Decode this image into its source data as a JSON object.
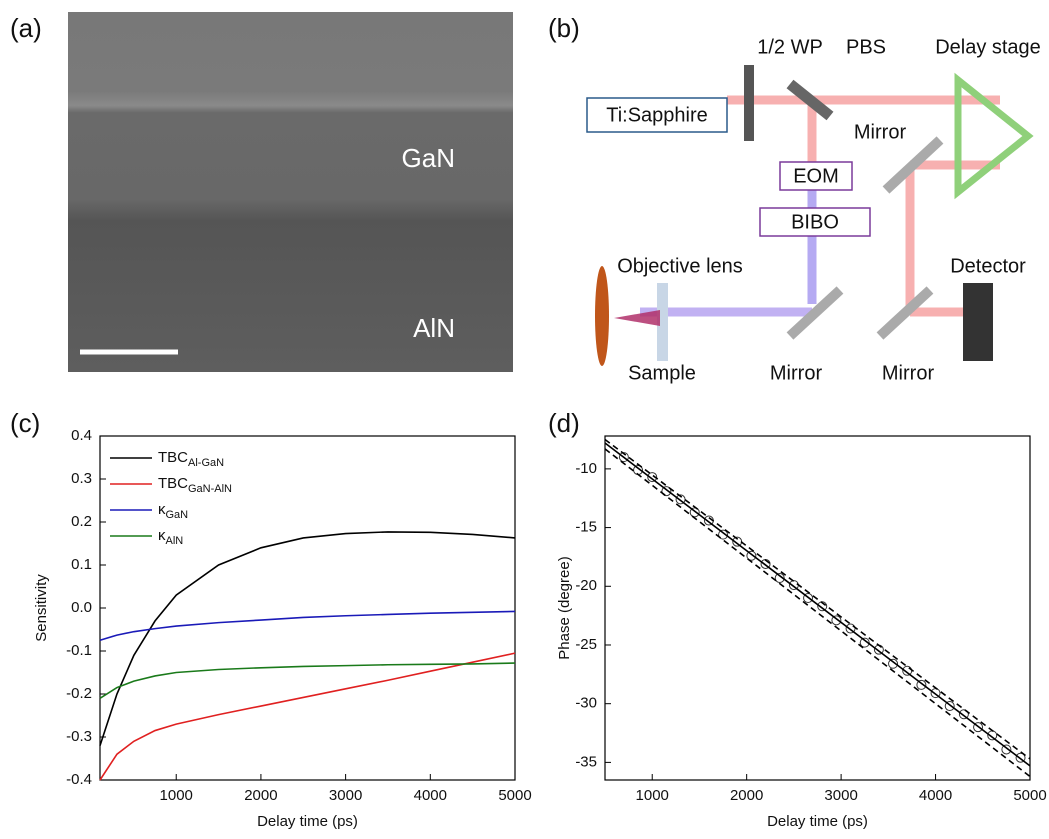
{
  "panels": {
    "a": "(a)",
    "b": "(b)",
    "c": "(c)",
    "d": "(d)"
  },
  "image": {
    "layer_top": "GaN",
    "layer_bottom": "AlN"
  },
  "diagram": {
    "laser": "Ti:Sapphire",
    "waveplate": "1/2 WP",
    "pbs": "PBS",
    "delay_stage": "Delay stage",
    "mirror_top": "Mirror",
    "eom": "EOM",
    "bibo": "BIBO",
    "objective": "Objective lens",
    "detector": "Detector",
    "sample": "Sample",
    "mirror_mid": "Mirror",
    "mirror_right": "Mirror"
  },
  "chart_data": [
    {
      "type": "line",
      "xlabel": "Delay time (ps)",
      "ylabel": "Sensitivity",
      "xlim": [
        100,
        5000
      ],
      "ylim": [
        -0.4,
        0.4
      ],
      "xticks": [
        1000,
        2000,
        3000,
        4000,
        5000
      ],
      "yticks": [
        -0.4,
        -0.3,
        -0.2,
        -0.1,
        {
          "value": 0,
          "label": "0.0"
        },
        0.1,
        0.2,
        0.3,
        0.4
      ],
      "legend": "top-left",
      "x": [
        100,
        300,
        500,
        750,
        1000,
        1500,
        2000,
        2500,
        3000,
        3500,
        4000,
        4500,
        5000
      ],
      "series": [
        {
          "name": "TBC",
          "name_sub": "Al-GaN",
          "color": "#000000",
          "values": [
            -0.32,
            -0.2,
            -0.11,
            -0.03,
            0.03,
            0.1,
            0.14,
            0.163,
            0.173,
            0.177,
            0.176,
            0.171,
            0.163
          ]
        },
        {
          "name": "TBC",
          "name_sub": "GaN-AlN",
          "color": "#e02020",
          "values": [
            -0.4,
            -0.34,
            -0.31,
            -0.285,
            -0.27,
            -0.248,
            -0.228,
            -0.208,
            -0.188,
            -0.168,
            -0.147,
            -0.126,
            -0.105
          ]
        },
        {
          "name": "κ",
          "name_sub": "GaN",
          "color": "#1a1ab8",
          "values": [
            -0.075,
            -0.063,
            -0.055,
            -0.048,
            -0.042,
            -0.034,
            -0.028,
            -0.022,
            -0.018,
            -0.015,
            -0.012,
            -0.01,
            -0.008
          ]
        },
        {
          "name": "κ",
          "name_sub": "AlN",
          "color": "#1a7a1a",
          "values": [
            -0.21,
            -0.185,
            -0.17,
            -0.158,
            -0.15,
            -0.143,
            -0.139,
            -0.136,
            -0.134,
            -0.132,
            -0.131,
            -0.13,
            -0.128
          ]
        }
      ]
    },
    {
      "type": "scatter",
      "xlabel": "Delay time (ps)",
      "ylabel": "Phase (degree)",
      "xlim": [
        500,
        5000
      ],
      "ylim": [
        -36.5,
        -7.2
      ],
      "xticks": [
        1000,
        2000,
        3000,
        4000,
        5000
      ],
      "yticks": [
        -35,
        -30,
        -25,
        -20,
        -15,
        -10
      ],
      "series": [
        {
          "type": "scatter",
          "color": "#333333",
          "x": [
            700,
            850,
            1000,
            1150,
            1300,
            1450,
            1600,
            1750,
            1900,
            2050,
            2200,
            2350,
            2500,
            2650,
            2800,
            2950,
            3100,
            3250,
            3400,
            3550,
            3700,
            3850,
            4000,
            4150,
            4300,
            4450,
            4600,
            4750,
            4900
          ],
          "values": [
            -9.0,
            -10.1,
            -10.7,
            -11.9,
            -12.6,
            -13.7,
            -14.4,
            -15.6,
            -16.2,
            -17.4,
            -18.1,
            -19.3,
            -19.9,
            -21.0,
            -21.7,
            -22.9,
            -23.6,
            -24.8,
            -25.4,
            -26.6,
            -27.2,
            -28.4,
            -29.1,
            -30.2,
            -30.9,
            -32.0,
            -32.7,
            -33.9,
            -34.6
          ]
        },
        {
          "type": "line",
          "color": "#000000",
          "x": [
            500,
            5000
          ],
          "values": [
            -7.8,
            -35.3
          ]
        },
        {
          "type": "line",
          "dash": true,
          "color": "#000000",
          "x": [
            500,
            5000
          ],
          "values": [
            -7.5,
            -34.7
          ]
        },
        {
          "type": "line",
          "dash": true,
          "color": "#000000",
          "x": [
            500,
            5000
          ],
          "values": [
            -8.3,
            -36.2
          ]
        }
      ]
    }
  ]
}
